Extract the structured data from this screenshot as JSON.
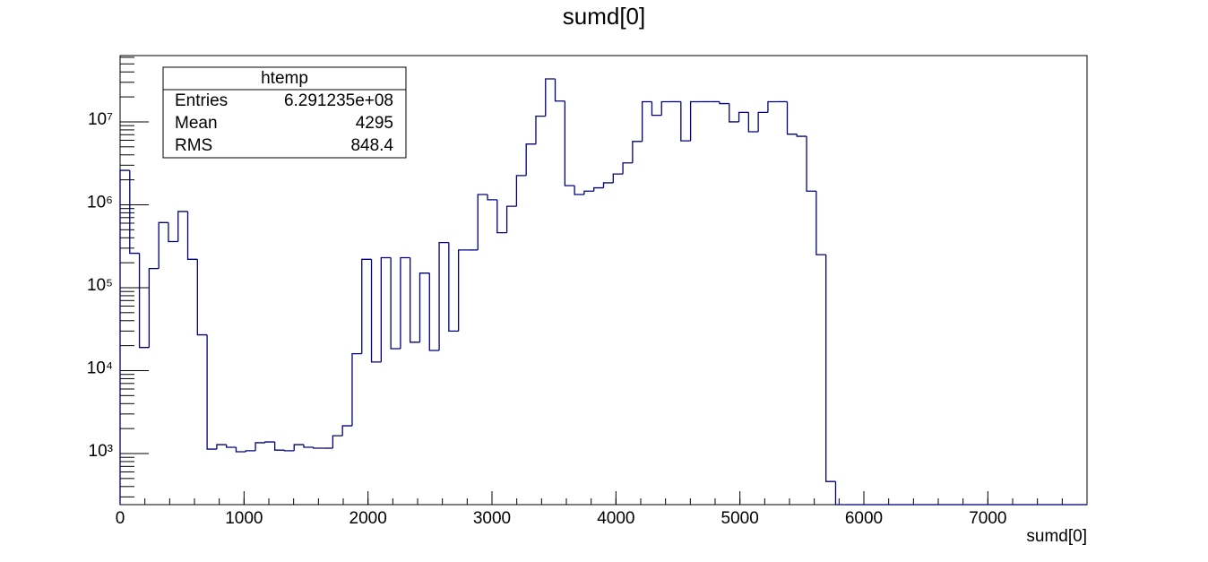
{
  "chart_data": {
    "type": "histogram",
    "title": "sumd[0]",
    "x_label": "sumd[0]",
    "bins": [
      0,
      78,
      156,
      234,
      312,
      390,
      468,
      546,
      624,
      702,
      780,
      858,
      936,
      1014,
      1092,
      1170,
      1248,
      1326,
      1404,
      1482,
      1560,
      1638,
      1716,
      1794,
      1872,
      1950,
      2028,
      2106,
      2184,
      2262,
      2340,
      2418,
      2496,
      2574,
      2652,
      2730,
      2808,
      2886,
      2964,
      3042,
      3120,
      3198,
      3276,
      3354,
      3432,
      3510,
      3588,
      3666,
      3744,
      3822,
      3900,
      3978,
      4056,
      4134,
      4212,
      4290,
      4368,
      4446,
      4524,
      4602,
      4680,
      4758,
      4836,
      4914,
      4992,
      5070,
      5148,
      5226,
      5304,
      5382,
      5460,
      5538,
      5616,
      5694,
      5772,
      5850,
      5928,
      6006,
      6084,
      6162,
      6240,
      6318,
      6396,
      6474,
      6552,
      6630,
      6708,
      6786,
      6864,
      6942,
      7020,
      7098,
      7176,
      7254,
      7332,
      7410,
      7488,
      7566,
      7644,
      7722,
      7800
    ],
    "values": [
      2600000,
      260000,
      19000,
      170000,
      610000,
      360000,
      830000,
      220000,
      27000,
      1130,
      1280,
      1190,
      1050,
      1080,
      1350,
      1380,
      1100,
      1080,
      1280,
      1190,
      1160,
      1160,
      1640,
      2160,
      16000,
      220000,
      12700,
      230000,
      18400,
      230000,
      22000,
      150000,
      17500,
      350000,
      30000,
      285000,
      285000,
      1330000,
      1150000,
      460000,
      960000,
      2250000,
      5400000,
      11700000,
      33000000,
      17800000,
      1700000,
      1330000,
      1460000,
      1600000,
      1840000,
      2350000,
      3200000,
      5800000,
      17500000,
      12000000,
      17500000,
      17500000,
      5900000,
      17500000,
      17500000,
      17500000,
      16600000,
      10000000,
      13000000,
      7600000,
      13000000,
      17500000,
      17500000,
      7100000,
      6700000,
      1460000,
      250000,
      460,
      0,
      0,
      0,
      0,
      0,
      0,
      0,
      0,
      0,
      0,
      0,
      0,
      0,
      0,
      0,
      0,
      0,
      0,
      0,
      0,
      0,
      0,
      0,
      0,
      0,
      0
    ],
    "color": "#000080",
    "log_y": true,
    "xlim": [
      0,
      7800
    ],
    "xticks": [
      0,
      1000,
      2000,
      3000,
      4000,
      5000,
      6000,
      7000
    ],
    "ylim": [
      242,
      63000000
    ],
    "yticks": [
      {
        "value": 1000,
        "label": "10³"
      },
      {
        "value": 10000,
        "label": "10⁴"
      },
      {
        "value": 100000,
        "label": "10⁵"
      },
      {
        "value": 1000000,
        "label": "10⁶"
      },
      {
        "value": 10000000,
        "label": "10⁷"
      }
    ],
    "stats": {
      "title": "htemp",
      "rows": [
        [
          "Entries",
          "6.291235e+08"
        ],
        [
          "Mean",
          "4295"
        ],
        [
          "RMS",
          "848.4"
        ]
      ]
    }
  }
}
